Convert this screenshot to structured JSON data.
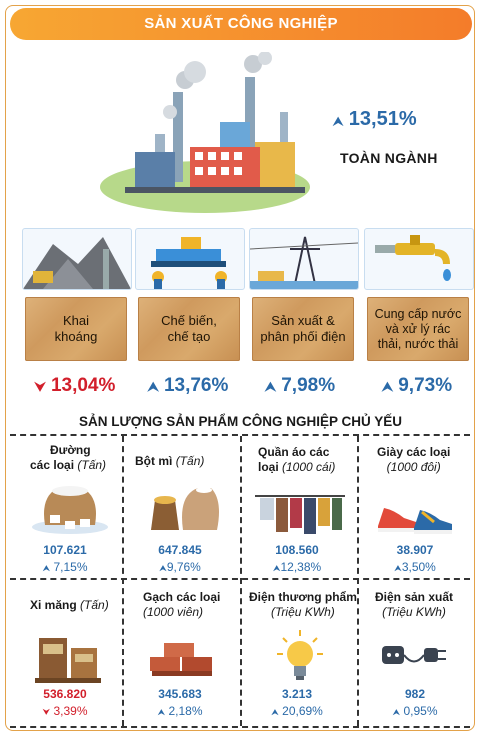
{
  "header": {
    "title": "SẢN XUẤT CÔNG NGHIỆP"
  },
  "overall": {
    "growth": "13,51%",
    "label": "TOÀN NGÀNH"
  },
  "sectors": [
    {
      "label_lines": [
        "Khai",
        "khoáng"
      ],
      "value": "13,04%",
      "direction": "down"
    },
    {
      "label_lines": [
        "Chế biến,",
        "chế tạo"
      ],
      "value": "13,76%",
      "direction": "up"
    },
    {
      "label_lines": [
        "Sản xuất &",
        "phân phối điện"
      ],
      "value": "7,98%",
      "direction": "up"
    },
    {
      "label_lines": [
        "Cung cấp nước",
        "và xử lý rác",
        "thải, nước thải"
      ],
      "value": "9,73%",
      "direction": "up"
    }
  ],
  "products_title": "SẢN LƯỢNG SẢN PHẨM CÔNG NGHIỆP CHỦ YẾU",
  "products": [
    {
      "name_lines": [
        "Đường",
        "các loại"
      ],
      "unit": "(Tấn)",
      "value": "107.621",
      "change": "7,15%",
      "direction": "up",
      "icon": "sugar-sack-icon"
    },
    {
      "name_lines": [
        "Bột mì"
      ],
      "unit": "(Tấn)",
      "value": "647.845",
      "change": "9,76%",
      "direction": "up",
      "icon": "flour-sack-icon"
    },
    {
      "name_lines": [
        "Quần áo các",
        "loại"
      ],
      "unit": "(1000 cái)",
      "value": "108.560",
      "change": "12,38%",
      "direction": "up",
      "icon": "clothes-rack-icon"
    },
    {
      "name_lines": [
        "Giày các loại"
      ],
      "unit": "(1000 đôi)",
      "value": "38.907",
      "change": "3,50%",
      "direction": "up",
      "icon": "shoes-icon"
    },
    {
      "name_lines": [
        "Xi măng"
      ],
      "unit": "(Tấn)",
      "value": "536.820",
      "change": "3,39%",
      "direction": "down",
      "icon": "cement-bags-icon"
    },
    {
      "name_lines": [
        "Gạch các loại"
      ],
      "unit": "(1000 viên)",
      "value": "345.683",
      "change": "2,18%",
      "direction": "up",
      "icon": "bricks-icon"
    },
    {
      "name_lines": [
        "Điện thương phẩm"
      ],
      "unit": "(Triệu KWh)",
      "value": "3.213",
      "change": "20,69%",
      "direction": "up",
      "icon": "light-bulb-icon"
    },
    {
      "name_lines": [
        "Điện sản xuất"
      ],
      "unit": "(Triệu KWh)",
      "value": "982",
      "change": "0,95%",
      "direction": "up",
      "icon": "power-plug-icon"
    }
  ],
  "colors": {
    "accent_orange": "#f47c2a",
    "up_blue": "#2b6aa8",
    "down_red": "#d21f2b",
    "wood": "#d9a96c"
  }
}
